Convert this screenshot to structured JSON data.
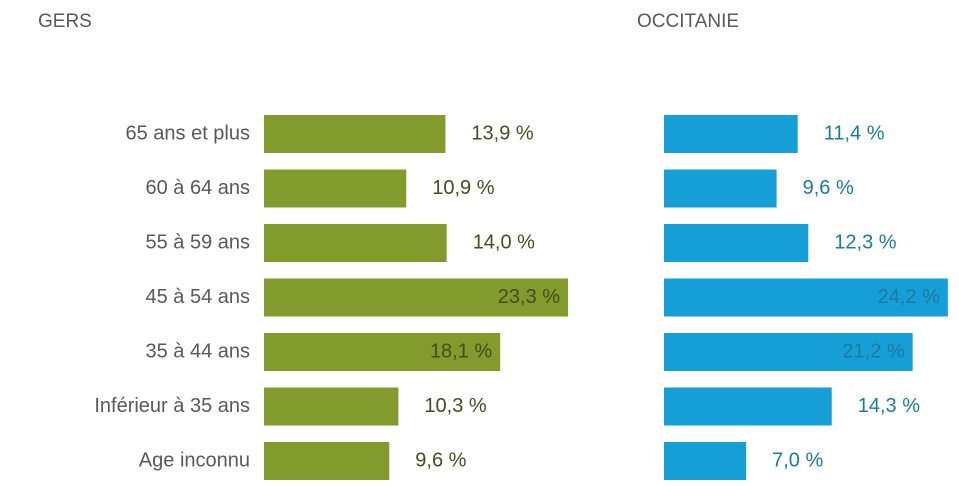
{
  "chart_data": [
    {
      "type": "bar",
      "orientation": "horizontal",
      "title": "GERS",
      "color": "#829b2c",
      "label_color": "#4b4a1e",
      "categories": [
        "65 ans et plus",
        "60 à 64 ans",
        "55 à 59 ans",
        "45 à 54 ans",
        "35 à 44 ans",
        "Inférieur à 35 ans",
        "Age inconnu"
      ],
      "values": [
        13.9,
        10.9,
        14.0,
        23.3,
        18.1,
        10.3,
        9.6
      ],
      "value_labels": [
        "13,9 %",
        "10,9 %",
        "14,0 %",
        "23,3 %",
        "18,1 %",
        "10,3 %",
        "9,6 %"
      ]
    },
    {
      "type": "bar",
      "orientation": "horizontal",
      "title": "OCCITANIE",
      "color": "#169fd6",
      "label_color": "#1a7aa3",
      "values": [
        11.4,
        9.6,
        12.3,
        24.2,
        21.2,
        14.3,
        7.0
      ],
      "value_labels": [
        "11,4 %",
        "9,6 %",
        "12,3 %",
        "24,2 %",
        "21,2 %",
        "14,3 %",
        "7,0 %"
      ]
    }
  ]
}
